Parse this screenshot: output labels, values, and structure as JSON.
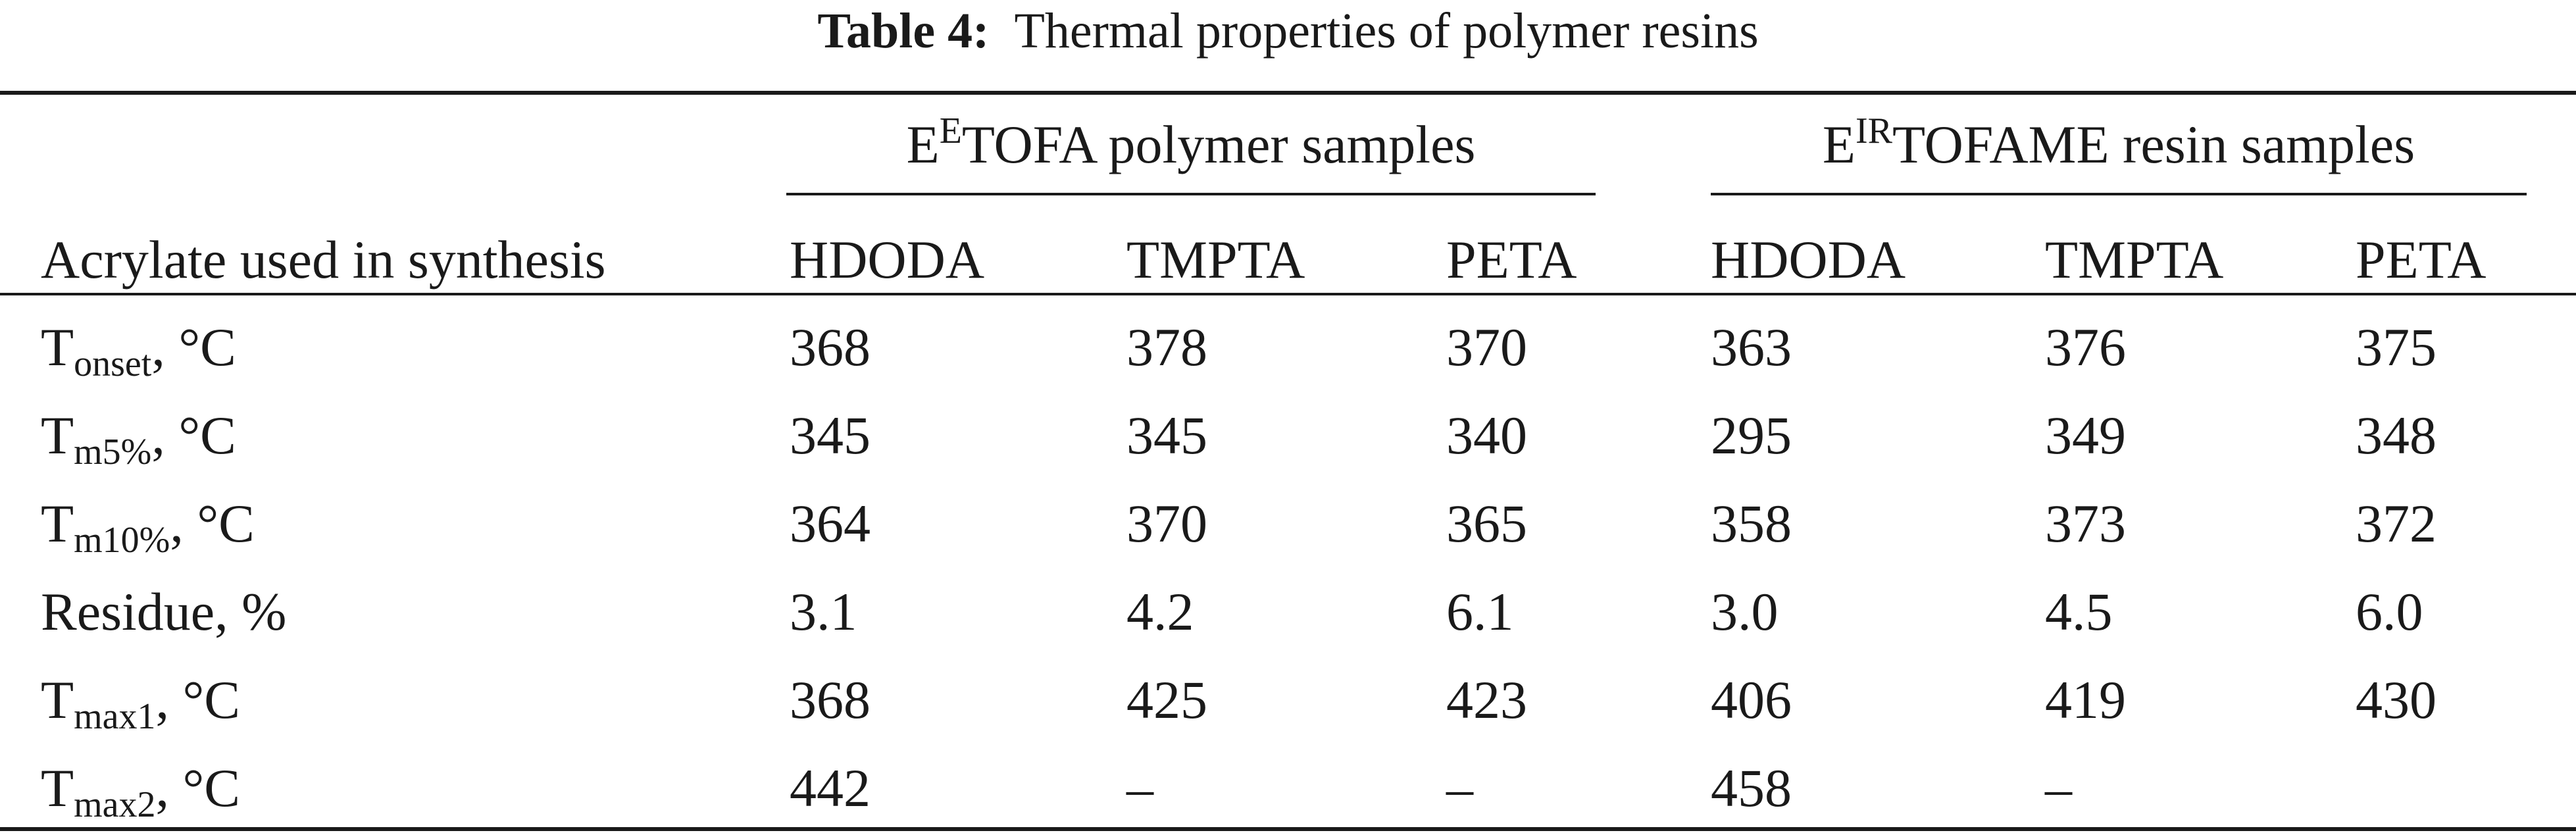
{
  "title": {
    "label": "Table 4:",
    "text": "Thermal properties of polymer resins"
  },
  "groups": [
    {
      "base": "E",
      "sup": "E",
      "rest": "TOFA polymer samples"
    },
    {
      "base": "E",
      "sup": "IR",
      "rest": "TOFAME resin samples"
    }
  ],
  "header": {
    "row_label": "Acrylate used in synthesis",
    "columns": [
      "HDODA",
      "TMPTA",
      "PETA",
      "HDODA",
      "TMPTA",
      "PETA"
    ]
  },
  "rows": [
    {
      "main": "T",
      "sub": "onset",
      "tail": ", °C",
      "values": [
        "368",
        "378",
        "370",
        "363",
        "376",
        "375"
      ]
    },
    {
      "main": "T",
      "sub": "m5%",
      "tail": ", °C",
      "values": [
        "345",
        "345",
        "340",
        "295",
        "349",
        "348"
      ]
    },
    {
      "main": "T",
      "sub": "m10%",
      "tail": ", °C",
      "values": [
        "364",
        "370",
        "365",
        "358",
        "373",
        "372"
      ]
    },
    {
      "main": "Residue, %",
      "sub": "",
      "tail": "",
      "values": [
        "3.1",
        "4.2",
        "6.1",
        "3.0",
        "4.5",
        "6.0"
      ]
    },
    {
      "main": "T",
      "sub": "max1",
      "tail": ", °C",
      "values": [
        "368",
        "425",
        "423",
        "406",
        "419",
        "430"
      ]
    },
    {
      "main": "T",
      "sub": "max2",
      "tail": ", °C",
      "values": [
        "442",
        "–",
        "–",
        "458",
        "–",
        ""
      ]
    }
  ]
}
